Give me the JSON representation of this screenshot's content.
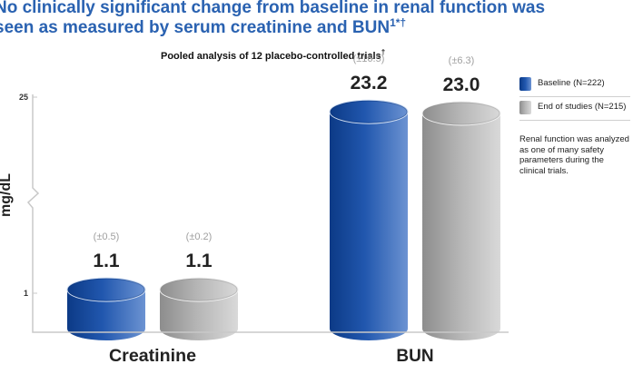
{
  "headline": {
    "line1": "No clinically significant change from baseline in renal function was",
    "line2": "seen as measured by serum creatinine and BUN",
    "line2_sup": "1*†"
  },
  "chart_data": {
    "type": "bar",
    "title": "Pooled analysis of 12 placebo-controlled trials",
    "title_sup": "†",
    "categories": [
      "Creatinine",
      "BUN"
    ],
    "ylabel": "mg/dL",
    "y_ticks": [
      "1",
      "25"
    ],
    "axis_break": true,
    "legend_position": "right",
    "series": [
      {
        "name": "Baseline (N=222)",
        "color": "#1a4f9c",
        "values": [
          1.1,
          23.2
        ],
        "errors": [
          "(±0.5)",
          "(±16.5)"
        ],
        "labels": [
          "1.1",
          "23.2"
        ]
      },
      {
        "name": "End of studies (N=215)",
        "color": "#a9a9a9",
        "values": [
          1.1,
          23.0
        ],
        "errors": [
          "(±0.2)",
          "(±6.3)"
        ],
        "labels": [
          "1.1",
          "23.0"
        ]
      }
    ]
  },
  "note": "Renal function was analyzed as one of many safety parameters during the clinical trials."
}
